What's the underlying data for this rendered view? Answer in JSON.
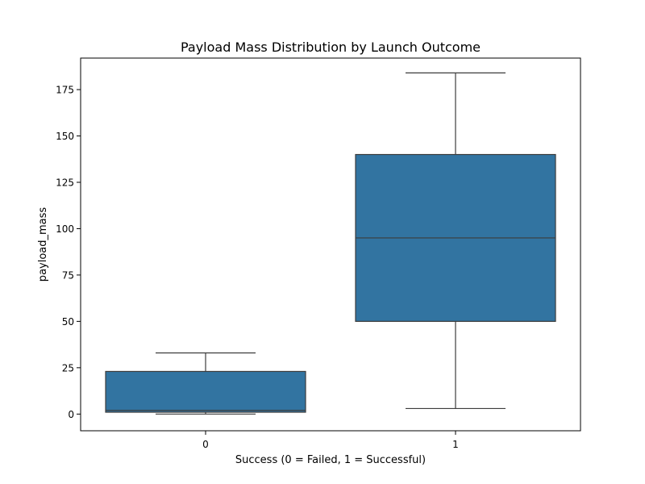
{
  "chart_data": {
    "type": "box",
    "title": "Payload Mass Distribution by Launch Outcome",
    "xlabel": "Success (0 = Failed, 1 = Successful)",
    "ylabel": "payload_mass",
    "categories": [
      "0",
      "1"
    ],
    "yticks": [
      "0",
      "25",
      "50",
      "75",
      "100",
      "125",
      "150",
      "175"
    ],
    "ylim": [
      -9,
      192
    ],
    "grid": false,
    "box_color": "#3274a1",
    "line_color": "#3c3c3c",
    "boxes": [
      {
        "category": "0",
        "whisker_low": 0,
        "q1": 1,
        "median": 2,
        "q3": 23,
        "whisker_high": 33
      },
      {
        "category": "1",
        "whisker_low": 3,
        "q1": 50,
        "median": 95,
        "q3": 140,
        "whisker_high": 184
      }
    ]
  }
}
